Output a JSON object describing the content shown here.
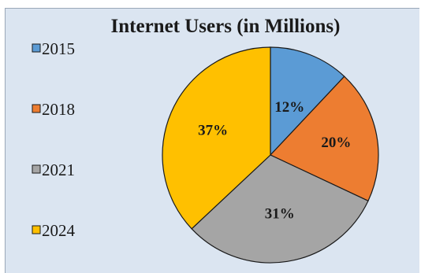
{
  "chart_data": {
    "type": "pie",
    "title": "Internet Users (in Millions)",
    "categories": [
      "2015",
      "2018",
      "2021",
      "2024"
    ],
    "values": [
      12,
      20,
      31,
      37
    ],
    "data_labels": [
      "12%",
      "20%",
      "31%",
      "37%"
    ],
    "colors": [
      "#5b9bd5",
      "#ed7d31",
      "#a5a5a5",
      "#ffc000"
    ],
    "legend_position": "left"
  }
}
